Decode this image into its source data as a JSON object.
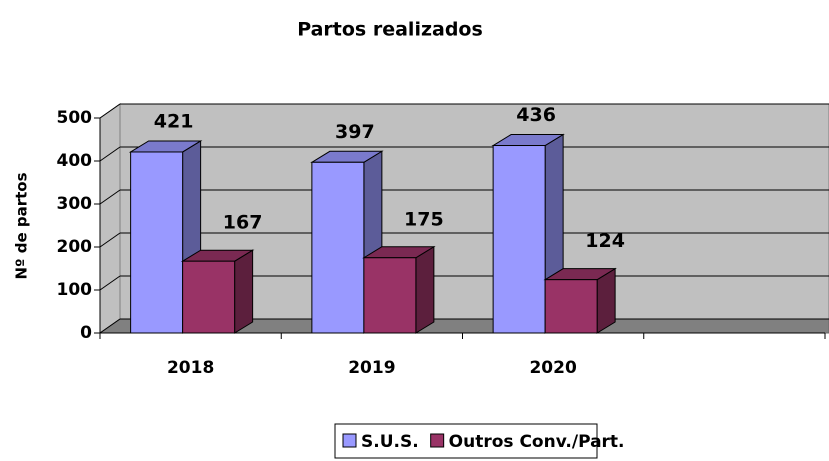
{
  "chart_data": {
    "type": "bar3d",
    "title": "Partos realizados",
    "y_label": "Nº de partos",
    "categories": [
      "2018",
      "2019",
      "2020",
      null
    ],
    "series": [
      {
        "name": "S.U.S.",
        "color": "#9999ff",
        "values": [
          421,
          397,
          436,
          null
        ]
      },
      {
        "name": "Outros Conv./Part.",
        "color": "#993366",
        "values": [
          167,
          175,
          124,
          null
        ]
      }
    ],
    "ylim": [
      0,
      500
    ],
    "yticks": [
      0,
      100,
      200,
      300,
      400,
      500
    ],
    "grid": true,
    "legend": "bottom"
  }
}
